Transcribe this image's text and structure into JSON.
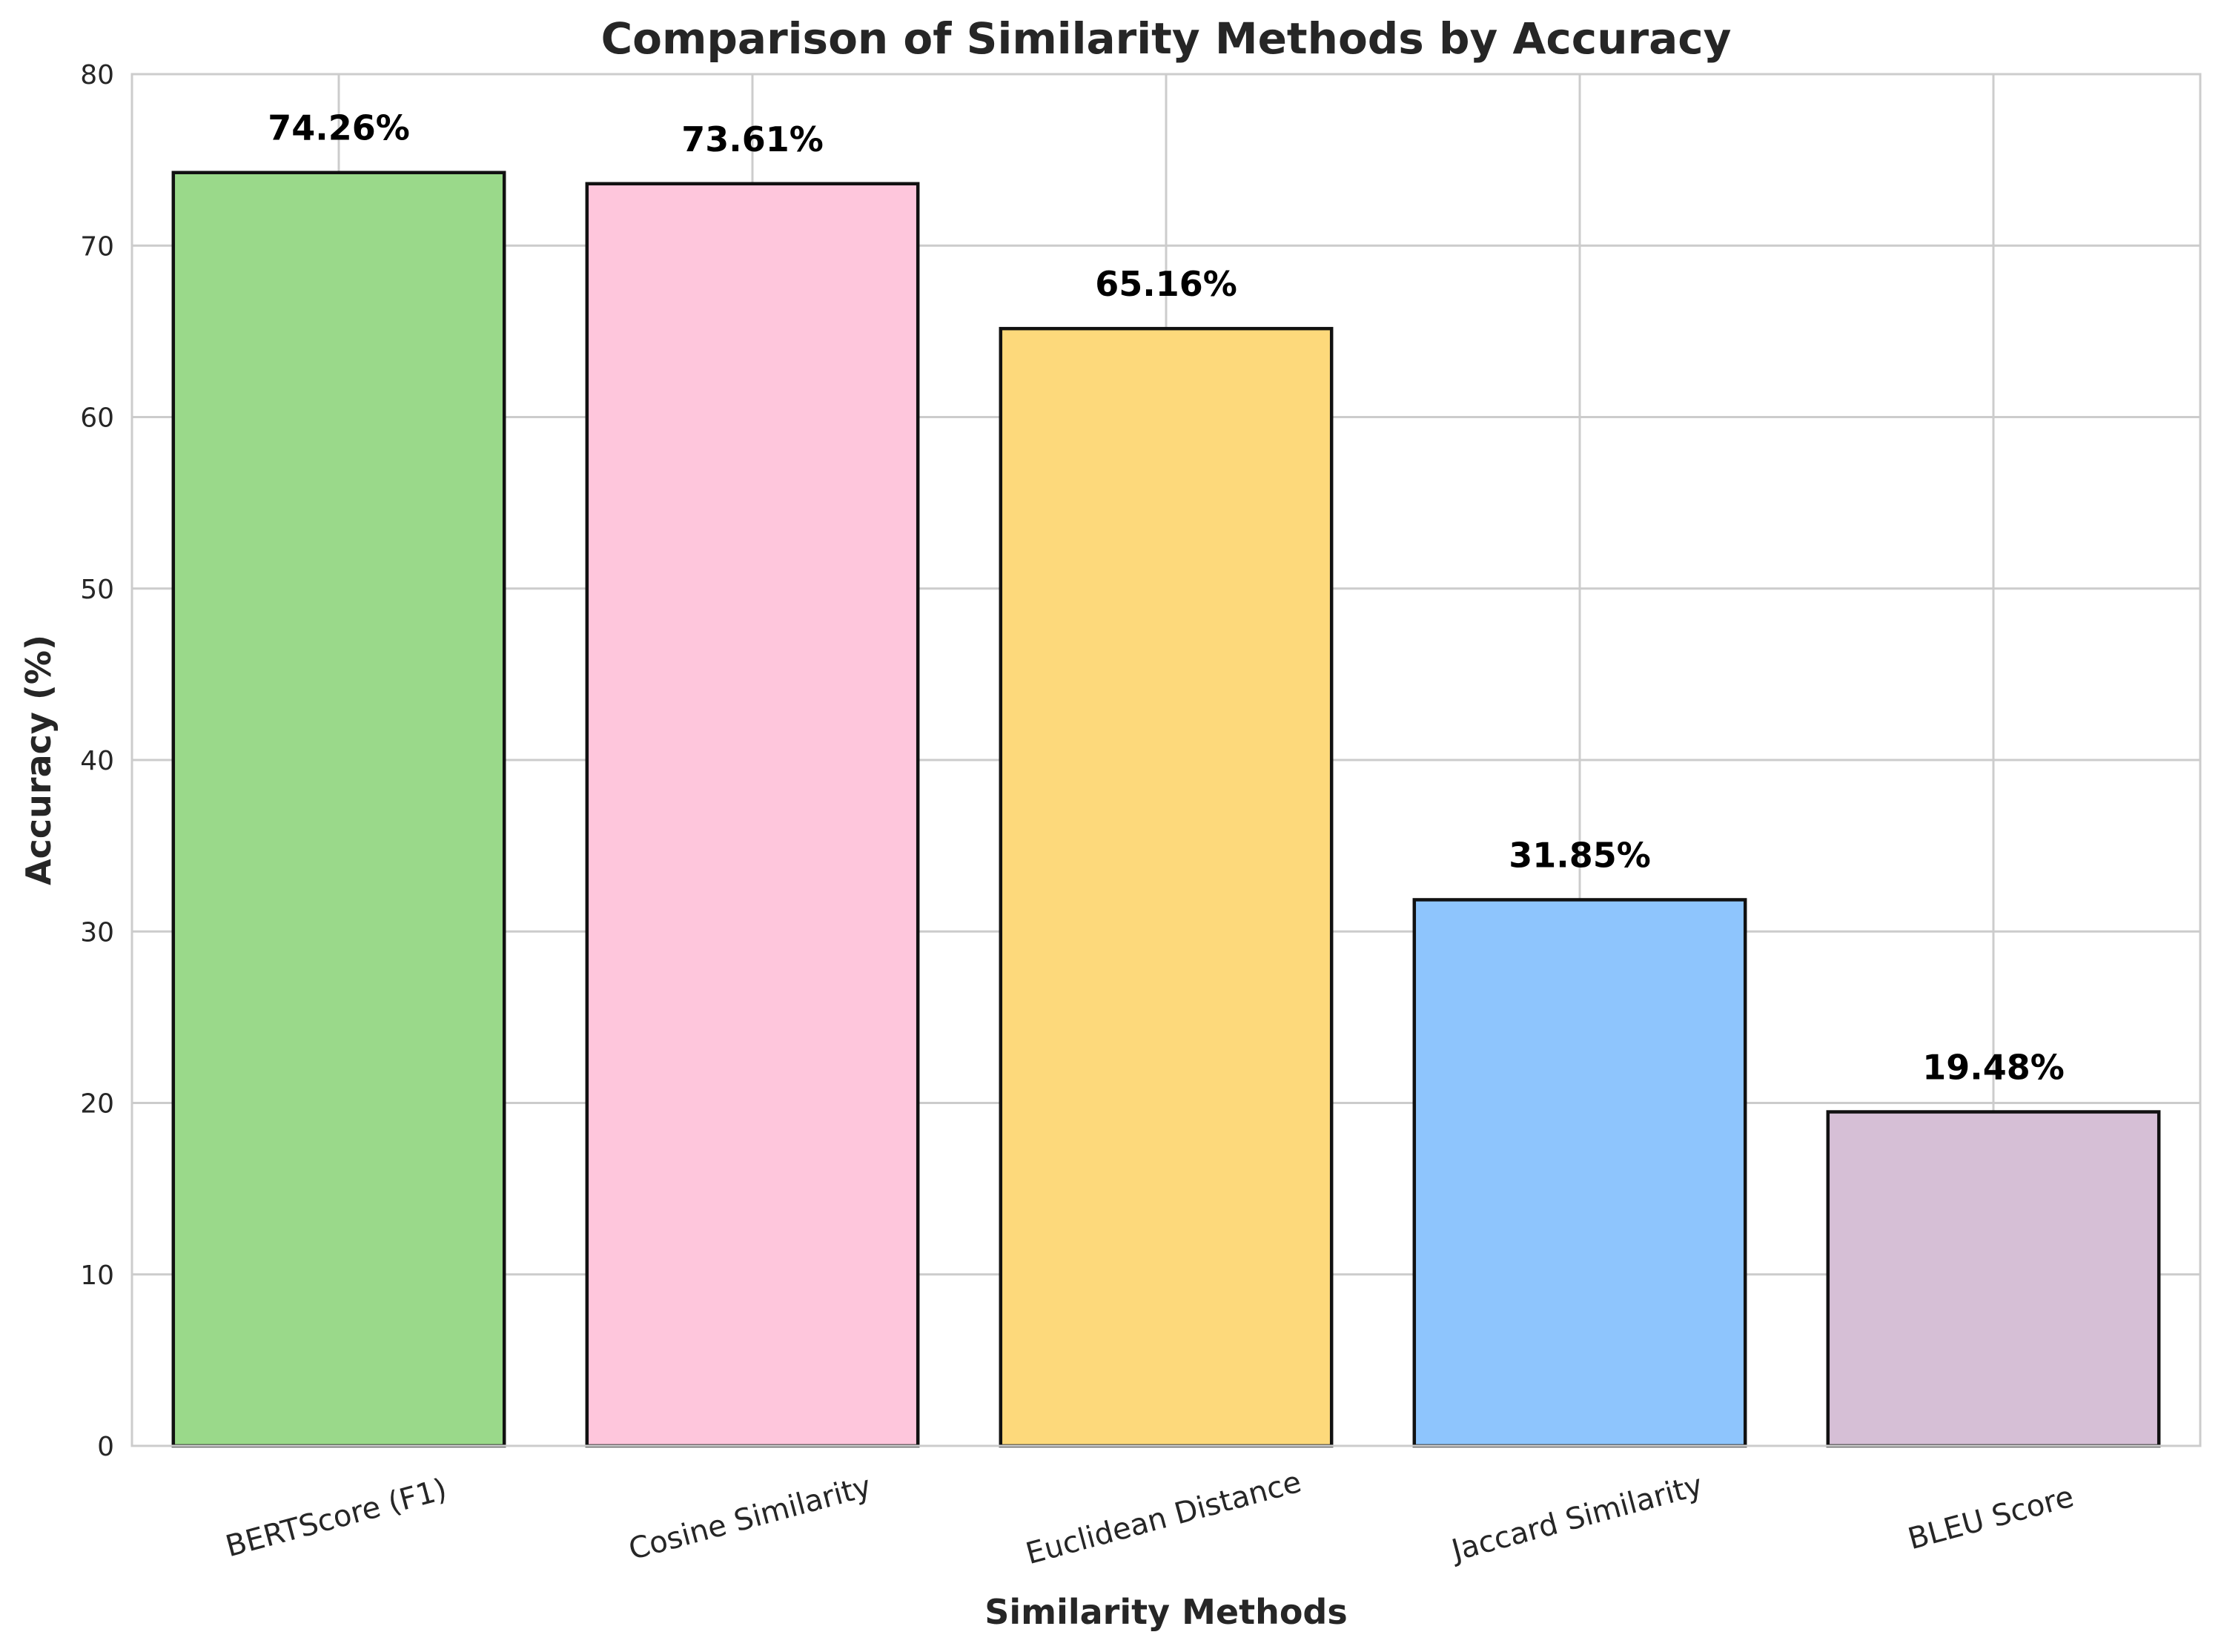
{
  "chart_data": {
    "type": "bar",
    "title": "Comparison of Similarity Methods by Accuracy",
    "xlabel": "Similarity Methods",
    "ylabel": "Accuracy (%)",
    "categories": [
      "BERTScore (F1)",
      "Cosine Similarity",
      "Euclidean Distance",
      "Jaccard Similarity",
      "BLEU Score"
    ],
    "values": [
      74.26,
      73.61,
      65.16,
      31.85,
      19.48
    ],
    "value_labels": [
      "74.26%",
      "73.61%",
      "65.16%",
      "31.85%",
      "19.48%"
    ],
    "colors": [
      "#9ad98a",
      "#fec6dc",
      "#fdd97b",
      "#8ec5fd",
      "#d6bfd6"
    ],
    "ylim": [
      0,
      80
    ],
    "yticks": [
      0,
      10,
      20,
      30,
      40,
      50,
      60,
      70,
      80
    ],
    "grid": true,
    "legend": "none"
  }
}
